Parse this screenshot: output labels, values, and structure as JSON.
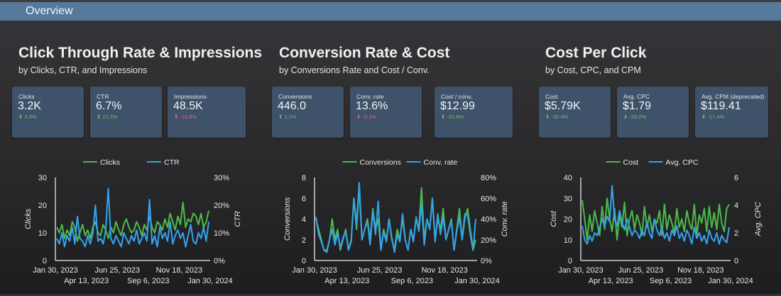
{
  "header": {
    "title": "Overview"
  },
  "colors": {
    "header": "#567a9c",
    "card": "#3e5269",
    "green": "#4cbb4a",
    "blue": "#34a3ee",
    "positive": "#62c26b",
    "negative": "#e0697a"
  },
  "sections": [
    {
      "title": "Click Through Rate & Impressions",
      "subtitle": "by Clicks, CTR, and Impressions",
      "cards": [
        {
          "label": "Clicks",
          "value": "3.2K",
          "delta": "⬆ 3.9%",
          "trend": "up"
        },
        {
          "label": "CTR",
          "value": "6.7%",
          "delta": "⬆ 23.3%",
          "trend": "up"
        },
        {
          "label": "Impressions",
          "value": "48.5K",
          "delta": "⬇ -15.8%",
          "trend": "down"
        }
      ]
    },
    {
      "title": "Conversion Rate & Cost",
      "subtitle": "by Conversions Rate and Cost / Conv.",
      "cards": [
        {
          "label": "Conversions",
          "value": "446.0",
          "delta": "⬆ 2.1%",
          "trend": "up"
        },
        {
          "label": "Conv. rate",
          "value": "13.6%",
          "delta": "⬇ -3.1%",
          "trend": "down"
        },
        {
          "label": "Cost / conv.",
          "value": "$12.99",
          "delta": "⬇ -31.8%",
          "trend": "up"
        }
      ]
    },
    {
      "title": "Cost Per Click",
      "subtitle": "by Cost, CPC, and CPM",
      "cards": [
        {
          "label": "Cost",
          "value": "$5.79K",
          "delta": "⬇ -30.4%",
          "trend": "up"
        },
        {
          "label": "Avg. CPC",
          "value": "$1.79",
          "delta": "⬇ -33.0%",
          "trend": "up"
        },
        {
          "label": "Avg. CPM (deprecated)",
          "value": "$119.41",
          "delta": "⬇ -17.4%",
          "trend": "up"
        }
      ]
    }
  ],
  "chart_data": [
    {
      "type": "line",
      "x_range": [
        "Jan 30, 2023",
        "Jan 30, 2024"
      ],
      "x_ticks": [
        "Jan 30, 2023",
        "Apr 13, 2023",
        "Jun 25, 2023",
        "Sep 6, 2023",
        "Nov 18, 2023",
        "Jan 30, 2024"
      ],
      "ylabel": "Clicks",
      "y2label": "CTR",
      "ylim": [
        0,
        30
      ],
      "y2lim": [
        0,
        30
      ],
      "y_ticks": [
        "0",
        "10",
        "20",
        "30"
      ],
      "y2_ticks": [
        "0%",
        "10%",
        "20%",
        "30%"
      ],
      "legend": "top",
      "series": [
        {
          "name": "Clicks",
          "axis": "left",
          "color": "#4cbb4a",
          "values": [
            12,
            10,
            13,
            8,
            11,
            9,
            14,
            12,
            7,
            10,
            13,
            9,
            11,
            8,
            12,
            14,
            10,
            9,
            13,
            11,
            8,
            12,
            10,
            14,
            11,
            9,
            13,
            15,
            12,
            10,
            11,
            14,
            12,
            9,
            13,
            11,
            16,
            12,
            10,
            14,
            13,
            11,
            15,
            12,
            17,
            14,
            11,
            16,
            13,
            21,
            12,
            15,
            14,
            17,
            16,
            13,
            17,
            12,
            14,
            18
          ]
        },
        {
          "name": "CTR",
          "axis": "right",
          "color": "#34a3ee",
          "values": [
            8,
            6,
            10,
            5,
            9,
            7,
            12,
            6,
            16,
            8,
            7,
            5,
            9,
            6,
            10,
            20,
            7,
            8,
            6,
            11,
            26,
            8,
            6,
            9,
            7,
            5,
            10,
            8,
            6,
            9,
            7,
            11,
            6,
            8,
            10,
            7,
            22,
            6,
            9,
            5,
            12,
            8,
            10,
            7,
            14,
            6,
            9,
            11,
            8,
            10,
            5,
            9,
            13,
            7,
            6,
            10,
            8,
            12,
            7,
            14
          ]
        }
      ]
    },
    {
      "type": "line",
      "x_range": [
        "Jan 30, 2023",
        "Jan 30, 2024"
      ],
      "x_ticks": [
        "Jan 30, 2023",
        "Apr 13, 2023",
        "Jun 25, 2023",
        "Sep 6, 2023",
        "Nov 18, 2023",
        "Jan 30, 2024"
      ],
      "ylabel": "Conversions",
      "y2label": "Conv. rate",
      "ylim": [
        0,
        8
      ],
      "y2lim": [
        0,
        80
      ],
      "y_ticks": [
        "0",
        "2",
        "4",
        "6",
        "8"
      ],
      "y2_ticks": [
        "0%",
        "20%",
        "40%",
        "60%",
        "80%"
      ],
      "legend": "top",
      "series": [
        {
          "name": "Conversions",
          "axis": "left",
          "color": "#4cbb4a",
          "values": [
            4,
            3,
            2,
            1,
            1,
            2,
            4,
            2,
            3,
            1,
            2,
            3,
            1,
            2,
            6,
            3,
            7,
            2,
            3,
            4,
            2,
            5,
            3,
            4,
            1,
            3,
            2,
            4,
            2,
            1,
            3,
            2,
            4,
            2,
            1,
            3,
            2,
            4,
            3,
            7,
            2,
            4,
            3,
            6,
            2,
            4,
            3,
            5,
            2,
            3,
            4,
            1,
            3,
            5,
            2,
            4,
            5,
            3,
            1,
            2
          ]
        },
        {
          "name": "Conv. rate",
          "axis": "right",
          "color": "#34a3ee",
          "values": [
            42,
            25,
            18,
            10,
            8,
            20,
            30,
            15,
            26,
            12,
            22,
            28,
            10,
            18,
            60,
            35,
            75,
            20,
            30,
            38,
            15,
            48,
            25,
            57,
            10,
            28,
            18,
            40,
            22,
            8,
            25,
            18,
            45,
            20,
            10,
            30,
            18,
            42,
            28,
            55,
            15,
            40,
            30,
            60,
            18,
            45,
            25,
            42,
            20,
            30,
            38,
            10,
            28,
            42,
            20,
            45,
            44,
            25,
            10,
            40
          ]
        }
      ]
    },
    {
      "type": "line",
      "x_range": [
        "Jan 30, 2023",
        "Jan 30, 2024"
      ],
      "x_ticks": [
        "Jan 30, 2023",
        "Apr 13, 2023",
        "Jun 25, 2023",
        "Sep 6, 2023",
        "Nov 18, 2023",
        "Jan 30, 2024"
      ],
      "ylabel": "Cost",
      "y2label": "Avg. CPC",
      "ylim": [
        0,
        40
      ],
      "y2lim": [
        0,
        6
      ],
      "y_ticks": [
        "0",
        "10",
        "20",
        "30",
        "40"
      ],
      "y2_ticks": [
        "0",
        "2",
        "4",
        "6"
      ],
      "legend": "top",
      "series": [
        {
          "name": "Cost",
          "axis": "left",
          "color": "#4cbb4a",
          "values": [
            29,
            20,
            10,
            22,
            14,
            24,
            18,
            12,
            26,
            15,
            30,
            20,
            14,
            25,
            10,
            22,
            16,
            28,
            12,
            20,
            24,
            15,
            22,
            18,
            12,
            26,
            16,
            22,
            14,
            20,
            18,
            24,
            12,
            27,
            15,
            22,
            18,
            13,
            25,
            16,
            20,
            14,
            24,
            18,
            15,
            27,
            12,
            22,
            18,
            25,
            14,
            26,
            16,
            23,
            15,
            27,
            18,
            14,
            25,
            27
          ]
        },
        {
          "name": "Avg. CPC",
          "axis": "right",
          "color": "#34a3ee",
          "values": [
            2.5,
            1.5,
            1.2,
            1.8,
            1.4,
            2.0,
            1.8,
            2.4,
            3.0,
            2.5,
            3.2,
            2.8,
            5.4,
            3.0,
            2.5,
            3.6,
            2.8,
            2.2,
            3.0,
            2.4,
            1.8,
            2.2,
            2.0,
            1.6,
            2.2,
            1.8,
            2.8,
            2.0,
            1.6,
            3.0,
            2.2,
            1.8,
            2.4,
            1.6,
            2.0,
            1.4,
            2.2,
            1.8,
            2.5,
            1.6,
            2.0,
            1.4,
            2.2,
            1.8,
            1.2,
            2.4,
            1.6,
            2.0,
            1.4,
            1.8,
            1.2,
            2.2,
            1.6,
            1.4,
            2.0,
            1.2,
            1.8,
            1.5,
            1.3,
            2.4
          ]
        }
      ]
    }
  ]
}
